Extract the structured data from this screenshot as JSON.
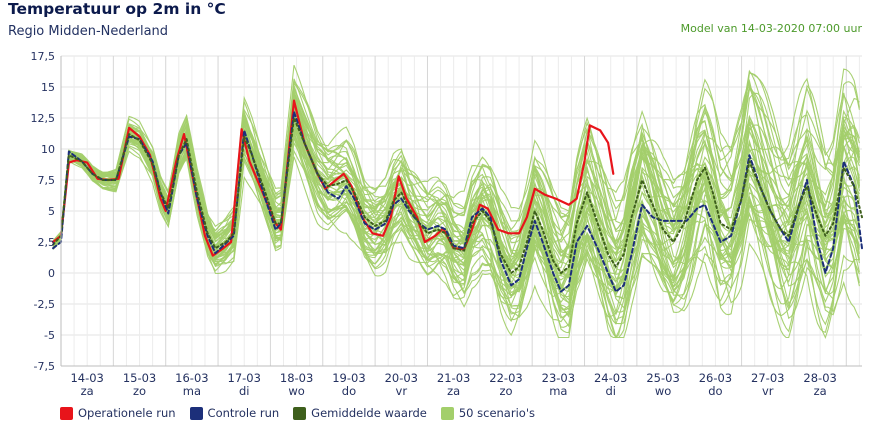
{
  "header": {
    "title": "Temperatuur op 2m in °C",
    "subtitle": "Regio Midden-Nederland",
    "model_run": "Model van 14-03-2020 07:00 uur"
  },
  "legend": [
    {
      "key": "operational",
      "label": "Operationele run",
      "color": "#e8141b"
    },
    {
      "key": "control",
      "label": "Controle run",
      "color": "#1c2f7a"
    },
    {
      "key": "mean",
      "label": "Gemiddelde waarde",
      "color": "#3e5f1c"
    },
    {
      "key": "scenarios",
      "label": "50 scenario's",
      "color": "#a3cf6b"
    }
  ],
  "chart_data": {
    "type": "line",
    "title": "Temperatuur op 2m in °C",
    "ylabel": "°C",
    "xlabel": "",
    "ylim": [
      -7.5,
      17.5
    ],
    "xlim": [
      0,
      15.3
    ],
    "y_ticks": [
      "17,5",
      "15",
      "12,5",
      "10",
      "7,5",
      "5",
      "2,5",
      "0",
      "-2,5",
      "-5",
      "-7,5"
    ],
    "categories": [
      {
        "date": "14-03",
        "day": "za"
      },
      {
        "date": "15-03",
        "day": "zo"
      },
      {
        "date": "16-03",
        "day": "ma"
      },
      {
        "date": "17-03",
        "day": "di"
      },
      {
        "date": "18-03",
        "day": "wo"
      },
      {
        "date": "19-03",
        "day": "do"
      },
      {
        "date": "20-03",
        "day": "vr"
      },
      {
        "date": "21-03",
        "day": "za"
      },
      {
        "date": "22-03",
        "day": "zo"
      },
      {
        "date": "23-03",
        "day": "ma"
      },
      {
        "date": "24-03",
        "day": "di"
      },
      {
        "date": "25-03",
        "day": "wo"
      },
      {
        "date": "26-03",
        "day": "do"
      },
      {
        "date": "27-03",
        "day": "vr"
      },
      {
        "date": "28-03",
        "day": "za"
      }
    ],
    "series": [
      {
        "name": "Operationele run",
        "color": "#e8141b",
        "width": 2.2,
        "points": [
          [
            -0.15,
            2.5
          ],
          [
            0,
            3
          ],
          [
            0.15,
            8.9
          ],
          [
            0.3,
            9.1
          ],
          [
            0.5,
            8.9
          ],
          [
            0.7,
            7.6
          ],
          [
            0.9,
            7.5
          ],
          [
            1.1,
            7.6
          ],
          [
            1.3,
            11.7
          ],
          [
            1.5,
            11
          ],
          [
            1.7,
            9.5
          ],
          [
            1.9,
            6
          ],
          [
            2.0,
            5
          ],
          [
            2.2,
            9
          ],
          [
            2.35,
            11.2
          ],
          [
            2.55,
            7
          ],
          [
            2.75,
            3
          ],
          [
            2.9,
            1.4
          ],
          [
            3.1,
            2
          ],
          [
            3.25,
            2.5
          ],
          [
            3.45,
            11.6
          ],
          [
            3.6,
            9
          ],
          [
            3.85,
            6.5
          ],
          [
            4.1,
            4
          ],
          [
            4.2,
            3.5
          ],
          [
            4.45,
            13.9
          ],
          [
            4.65,
            10.5
          ],
          [
            4.9,
            8
          ],
          [
            5.05,
            6.8
          ],
          [
            5.25,
            7.5
          ],
          [
            5.4,
            8
          ],
          [
            5.55,
            7
          ],
          [
            5.75,
            4.5
          ],
          [
            5.95,
            3.2
          ],
          [
            6.15,
            3
          ],
          [
            6.3,
            4.5
          ],
          [
            6.45,
            7.8
          ],
          [
            6.6,
            6
          ],
          [
            6.8,
            4.5
          ],
          [
            6.95,
            2.5
          ],
          [
            7.15,
            3
          ],
          [
            7.3,
            3.6
          ],
          [
            7.5,
            2
          ],
          [
            7.7,
            1.9
          ],
          [
            7.85,
            3.5
          ],
          [
            8.0,
            5.5
          ],
          [
            8.15,
            5.2
          ],
          [
            8.35,
            3.5
          ],
          [
            8.55,
            3.2
          ],
          [
            8.75,
            3.2
          ],
          [
            8.9,
            4.5
          ],
          [
            9.05,
            6.8
          ],
          [
            9.25,
            6.3
          ],
          [
            9.45,
            6
          ],
          [
            9.7,
            5.5
          ],
          [
            9.85,
            6
          ],
          [
            10.0,
            9
          ],
          [
            10.1,
            11.9
          ],
          [
            10.3,
            11.5
          ],
          [
            10.45,
            10.5
          ],
          [
            10.55,
            8
          ]
        ]
      },
      {
        "name": "Controle run",
        "color": "#1c2f7a",
        "width": 2,
        "dash": "4,3",
        "points": [
          [
            -0.15,
            2
          ],
          [
            0,
            2.5
          ],
          [
            0.15,
            9.8
          ],
          [
            0.4,
            9
          ],
          [
            0.6,
            8
          ],
          [
            0.8,
            7.5
          ],
          [
            1.05,
            7.5
          ],
          [
            1.3,
            11
          ],
          [
            1.5,
            10.8
          ],
          [
            1.75,
            9
          ],
          [
            1.9,
            6.5
          ],
          [
            2.05,
            4.8
          ],
          [
            2.25,
            9.5
          ],
          [
            2.4,
            10.5
          ],
          [
            2.6,
            6
          ],
          [
            2.8,
            3
          ],
          [
            2.95,
            1.6
          ],
          [
            3.15,
            2.4
          ],
          [
            3.3,
            3
          ],
          [
            3.5,
            11.5
          ],
          [
            3.65,
            9.5
          ],
          [
            3.9,
            6
          ],
          [
            4.1,
            3.5
          ],
          [
            4.2,
            4
          ],
          [
            4.45,
            13
          ],
          [
            4.65,
            10.5
          ],
          [
            4.9,
            8
          ],
          [
            5.1,
            6.5
          ],
          [
            5.3,
            6
          ],
          [
            5.45,
            7
          ],
          [
            5.6,
            6
          ],
          [
            5.8,
            4
          ],
          [
            6.0,
            3.5
          ],
          [
            6.2,
            4
          ],
          [
            6.35,
            5.5
          ],
          [
            6.5,
            6
          ],
          [
            6.65,
            5
          ],
          [
            6.85,
            4
          ],
          [
            7.0,
            3.5
          ],
          [
            7.2,
            3.8
          ],
          [
            7.35,
            3.5
          ],
          [
            7.5,
            2.2
          ],
          [
            7.7,
            2
          ],
          [
            7.85,
            4.5
          ],
          [
            8.05,
            5.2
          ],
          [
            8.2,
            4.5
          ],
          [
            8.4,
            1
          ],
          [
            8.6,
            -1
          ],
          [
            8.75,
            -0.5
          ],
          [
            8.9,
            2
          ],
          [
            9.05,
            4.2
          ],
          [
            9.2,
            2.5
          ],
          [
            9.4,
            0
          ],
          [
            9.55,
            -1.5
          ],
          [
            9.7,
            -1
          ],
          [
            9.85,
            2.5
          ],
          [
            10.05,
            3.8
          ],
          [
            10.25,
            2
          ],
          [
            10.45,
            0
          ],
          [
            10.6,
            -1.5
          ],
          [
            10.75,
            -1
          ],
          [
            10.9,
            1.5
          ],
          [
            11.1,
            5.5
          ],
          [
            11.3,
            4.5
          ],
          [
            11.5,
            4.2
          ],
          [
            11.75,
            4.2
          ],
          [
            11.95,
            4.2
          ],
          [
            12.15,
            5.2
          ],
          [
            12.3,
            5.5
          ],
          [
            12.45,
            4
          ],
          [
            12.6,
            2.5
          ],
          [
            12.8,
            3
          ],
          [
            13.0,
            6
          ],
          [
            13.15,
            9.5
          ],
          [
            13.35,
            7
          ],
          [
            13.55,
            5
          ],
          [
            13.75,
            3.5
          ],
          [
            13.9,
            2.5
          ],
          [
            14.1,
            5.5
          ],
          [
            14.25,
            7.5
          ],
          [
            14.45,
            2.5
          ],
          [
            14.6,
            0
          ],
          [
            14.75,
            2
          ],
          [
            14.95,
            9
          ],
          [
            15.15,
            7
          ],
          [
            15.3,
            2
          ]
        ]
      },
      {
        "name": "Gemiddelde waarde",
        "color": "#3e5f1c",
        "width": 2,
        "dash": "2,3",
        "points": [
          [
            -0.15,
            2.3
          ],
          [
            0,
            3
          ],
          [
            0.15,
            9.5
          ],
          [
            0.4,
            9
          ],
          [
            0.6,
            8
          ],
          [
            0.8,
            7.5
          ],
          [
            1.05,
            7.5
          ],
          [
            1.3,
            11.2
          ],
          [
            1.5,
            10.7
          ],
          [
            1.75,
            8.8
          ],
          [
            1.9,
            6.5
          ],
          [
            2.05,
            5.2
          ],
          [
            2.25,
            9.5
          ],
          [
            2.4,
            10.8
          ],
          [
            2.6,
            6.5
          ],
          [
            2.8,
            3.2
          ],
          [
            2.95,
            2
          ],
          [
            3.15,
            2.5
          ],
          [
            3.3,
            3.2
          ],
          [
            3.5,
            11
          ],
          [
            3.65,
            9.5
          ],
          [
            3.9,
            6.5
          ],
          [
            4.1,
            4
          ],
          [
            4.2,
            4
          ],
          [
            4.45,
            12.5
          ],
          [
            4.65,
            10.5
          ],
          [
            4.9,
            8
          ],
          [
            5.1,
            7
          ],
          [
            5.3,
            7.2
          ],
          [
            5.45,
            7.5
          ],
          [
            5.6,
            6.5
          ],
          [
            5.8,
            4.5
          ],
          [
            6.0,
            3.8
          ],
          [
            6.2,
            4.2
          ],
          [
            6.35,
            5.8
          ],
          [
            6.5,
            6.5
          ],
          [
            6.65,
            5.2
          ],
          [
            6.85,
            4
          ],
          [
            7.0,
            3.2
          ],
          [
            7.2,
            3.5
          ],
          [
            7.35,
            3.2
          ],
          [
            7.5,
            2
          ],
          [
            7.7,
            1.8
          ],
          [
            7.85,
            4
          ],
          [
            8.05,
            5
          ],
          [
            8.2,
            4.2
          ],
          [
            8.4,
            1.5
          ],
          [
            8.6,
            0
          ],
          [
            8.75,
            0.5
          ],
          [
            8.9,
            2.5
          ],
          [
            9.05,
            5
          ],
          [
            9.2,
            3.5
          ],
          [
            9.4,
            1
          ],
          [
            9.55,
            0
          ],
          [
            9.7,
            0.5
          ],
          [
            9.85,
            4
          ],
          [
            10.05,
            6.5
          ],
          [
            10.25,
            4
          ],
          [
            10.45,
            1.5
          ],
          [
            10.6,
            0.5
          ],
          [
            10.75,
            1.5
          ],
          [
            10.9,
            4.5
          ],
          [
            11.1,
            7.5
          ],
          [
            11.3,
            5.5
          ],
          [
            11.5,
            3.5
          ],
          [
            11.7,
            2.5
          ],
          [
            11.9,
            4
          ],
          [
            12.15,
            7.5
          ],
          [
            12.3,
            8.5
          ],
          [
            12.45,
            6.5
          ],
          [
            12.6,
            4
          ],
          [
            12.8,
            3.5
          ],
          [
            13.0,
            6
          ],
          [
            13.15,
            9
          ],
          [
            13.35,
            7
          ],
          [
            13.55,
            5
          ],
          [
            13.75,
            3.5
          ],
          [
            13.9,
            3
          ],
          [
            14.1,
            5.5
          ],
          [
            14.25,
            7
          ],
          [
            14.45,
            4.5
          ],
          [
            14.6,
            3
          ],
          [
            14.75,
            4
          ],
          [
            14.95,
            8.5
          ],
          [
            15.15,
            7
          ],
          [
            15.3,
            4.5
          ]
        ]
      }
    ]
  }
}
